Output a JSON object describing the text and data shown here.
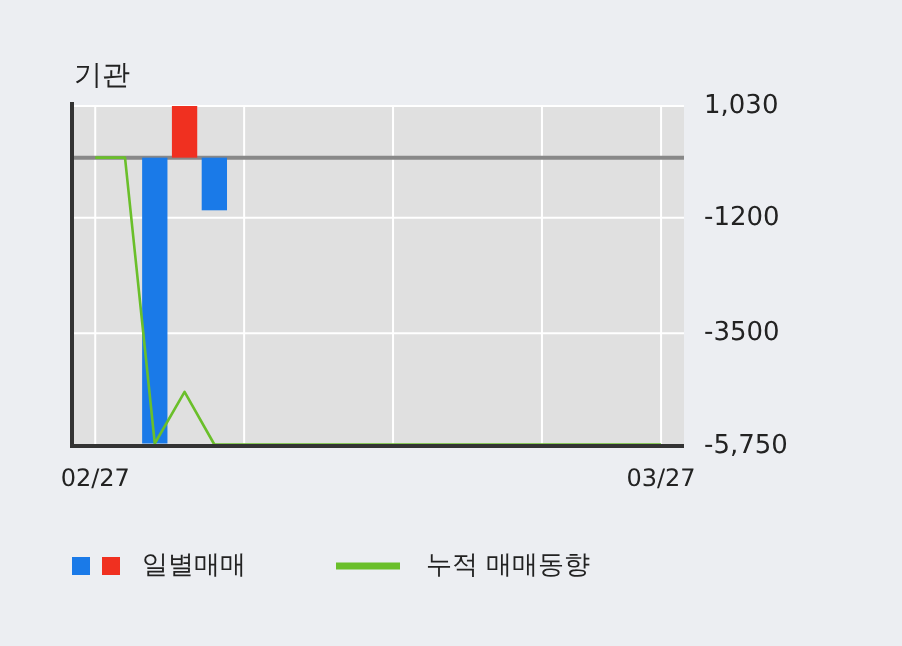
{
  "chart_data": {
    "type": "bar",
    "title": "기관",
    "categories": [
      "02/27",
      null,
      null,
      null,
      null,
      null,
      null,
      null,
      null,
      null,
      null,
      null,
      null,
      null,
      null,
      null,
      null,
      null,
      null,
      "03/27"
    ],
    "series": [
      {
        "name": "일별매매",
        "values": [
          null,
          null,
          -5700,
          1030,
          -1050,
          null,
          null,
          null,
          null,
          null,
          null,
          null,
          null,
          null,
          null,
          null,
          null,
          null,
          null,
          null
        ],
        "colors": [
          "#1a7ae8",
          "#1a7ae8",
          "#1a7ae8",
          "#f03020",
          "#1a7ae8",
          "#1a7ae8",
          "#1a7ae8",
          "#1a7ae8",
          "#1a7ae8",
          "#1a7ae8",
          "#1a7ae8",
          "#1a7ae8",
          "#1a7ae8",
          "#1a7ae8",
          "#1a7ae8",
          "#1a7ae8",
          "#1a7ae8",
          "#1a7ae8",
          "#1a7ae8",
          "#1a7ae8"
        ]
      },
      {
        "name": "누적 매매동향",
        "type": "line",
        "color": "#6abf2a",
        "values": [
          0,
          0,
          -5700,
          -4670,
          -5720,
          -5720,
          -5720,
          -5720,
          -5720,
          -5720,
          -5720,
          -5720,
          -5720,
          -5720,
          -5720,
          -5720,
          -5720,
          -5720,
          -5720,
          -5720
        ]
      }
    ],
    "ylim": [
      -5750,
      1030
    ],
    "yticks": [
      {
        "value": 1030,
        "label": "1,030"
      },
      -1200,
      -3500,
      {
        "value": -5750,
        "label": "-5,750"
      }
    ],
    "ref_lines": [
      {
        "axis": "y",
        "value": 0,
        "color": "#888888"
      }
    ],
    "grid": true,
    "legend": "bottom"
  }
}
